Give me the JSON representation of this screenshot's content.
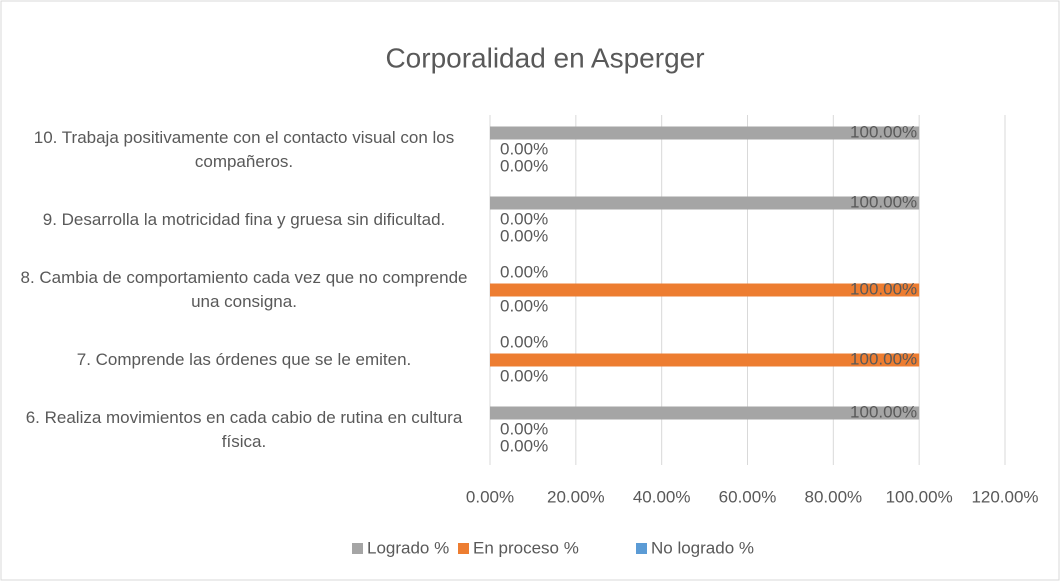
{
  "chart_data": {
    "type": "bar",
    "orientation": "horizontal",
    "title": "Corporalidad en Asperger",
    "categories": [
      "10. Trabaja positivamente con el contacto visual con los compañeros.",
      "9.   Desarrolla la motricidad fina y gruesa sin dificultad.",
      "8.   Cambia de comportamiento cada vez que no comprende una consigna.",
      "7.   Comprende las órdenes que se le emiten.",
      "6.   Realiza movimientos en cada cabio de rutina en cultura física."
    ],
    "series": [
      {
        "name": "Logrado %",
        "color": "#a5a5a5",
        "values": [
          100,
          100,
          0,
          0,
          100
        ],
        "value_labels": [
          "100.00%",
          "100.00%",
          "0.00%",
          "0.00%",
          "100.00%"
        ]
      },
      {
        "name": "En proceso %",
        "color": "#ed7d31",
        "values": [
          0,
          0,
          100,
          100,
          0
        ],
        "value_labels": [
          "0.00%",
          "0.00%",
          "100.00%",
          "100.00%",
          "0.00%"
        ]
      },
      {
        "name": "No logrado %",
        "color": "#5b9bd5",
        "values": [
          0,
          0,
          0,
          0,
          0
        ],
        "value_labels": [
          "0.00%",
          "0.00%",
          "0.00%",
          "0.00%",
          "0.00%"
        ]
      }
    ],
    "xlim": [
      0,
      120
    ],
    "xticks": [
      {
        "value": 0,
        "label": "0.00%"
      },
      {
        "value": 20,
        "label": "20.00%"
      },
      {
        "value": 40,
        "label": "40.00%"
      },
      {
        "value": 60,
        "label": "60.00%"
      },
      {
        "value": 80,
        "label": "80.00%"
      },
      {
        "value": 100,
        "label": "100.00%"
      },
      {
        "value": 120,
        "label": "120.00%"
      }
    ],
    "grid": true,
    "legend": "bottom"
  }
}
